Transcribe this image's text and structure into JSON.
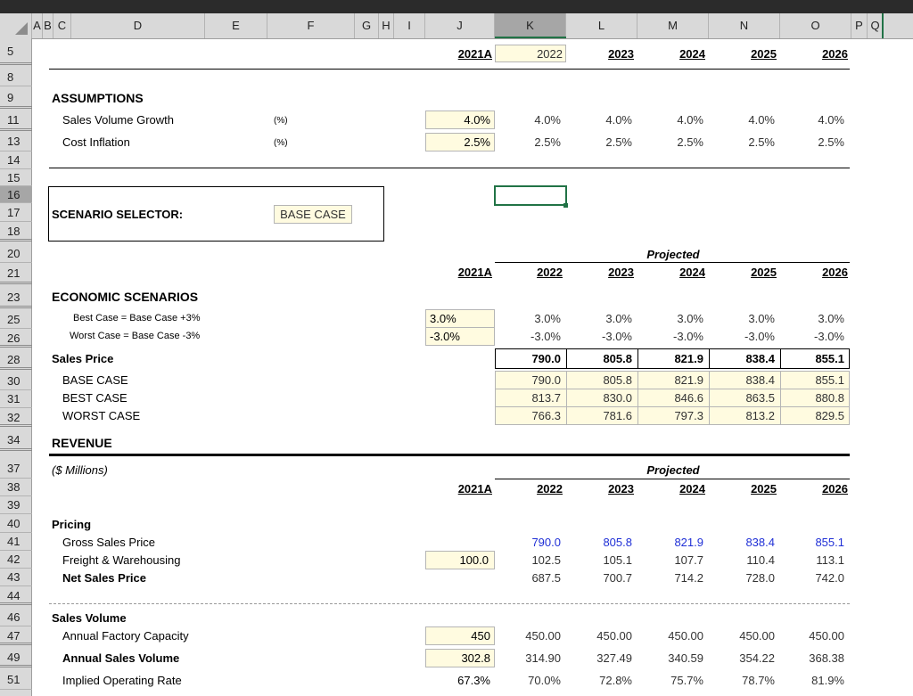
{
  "colors": {
    "selection": "#217346",
    "input_fill": "#fffbe0",
    "blue_text": "#1f2fd6"
  },
  "columns": [
    "A",
    "B",
    "C",
    "D",
    "E",
    "F",
    "G",
    "H",
    "I",
    "J",
    "K",
    "L",
    "M",
    "N",
    "O",
    "P",
    "Q"
  ],
  "rows": [
    "5",
    "8",
    "9",
    "11",
    "13",
    "14",
    "15",
    "16",
    "17",
    "18",
    "20",
    "21",
    "23",
    "25",
    "26",
    "28",
    "30",
    "31",
    "32",
    "34",
    "37",
    "38",
    "39",
    "40",
    "41",
    "42",
    "43",
    "44",
    "46",
    "47",
    "49",
    "51"
  ],
  "years": [
    "2021A",
    "2022",
    "2023",
    "2024",
    "2025",
    "2026"
  ],
  "projected_label": "Projected",
  "assumptions": {
    "title": "ASSUMPTIONS",
    "sales_growth": {
      "label": "Sales Volume Growth",
      "unit": "(%)",
      "values": [
        "4.0%",
        "4.0%",
        "4.0%",
        "4.0%",
        "4.0%",
        "4.0%"
      ]
    },
    "cost_inflation": {
      "label": "Cost Inflation",
      "unit": "(%)",
      "values": [
        "2.5%",
        "2.5%",
        "2.5%",
        "2.5%",
        "2.5%",
        "2.5%"
      ]
    }
  },
  "scenario": {
    "label": "SCENARIO SELECTOR:",
    "value": "BASE CASE"
  },
  "economic": {
    "title": "ECONOMIC SCENARIOS",
    "best": {
      "label": "Best Case = Base Case +3%",
      "values": [
        "3.0%",
        "3.0%",
        "3.0%",
        "3.0%",
        "3.0%",
        "3.0%"
      ]
    },
    "worst": {
      "label": "Worst Case = Base Case -3%",
      "values": [
        "-3.0%",
        "-3.0%",
        "-3.0%",
        "-3.0%",
        "-3.0%",
        "-3.0%"
      ]
    },
    "sales_price": {
      "label": "Sales Price",
      "values": [
        "790.0",
        "805.8",
        "821.9",
        "838.4",
        "855.1"
      ]
    },
    "base_case": {
      "label": "BASE CASE",
      "values": [
        "790.0",
        "805.8",
        "821.9",
        "838.4",
        "855.1"
      ]
    },
    "best_case": {
      "label": "BEST CASE",
      "values": [
        "813.7",
        "830.0",
        "846.6",
        "863.5",
        "880.8"
      ]
    },
    "worst_case": {
      "label": "WORST CASE",
      "values": [
        "766.3",
        "781.6",
        "797.3",
        "813.2",
        "829.5"
      ]
    }
  },
  "revenue": {
    "title": "REVENUE",
    "units": "($ Millions)",
    "pricing_label": "Pricing",
    "gross": {
      "label": "Gross Sales Price",
      "values": [
        "790.0",
        "805.8",
        "821.9",
        "838.4",
        "855.1"
      ]
    },
    "freight": {
      "label": "Freight & Warehousing",
      "values": [
        "100.0",
        "102.5",
        "105.1",
        "107.7",
        "110.4",
        "113.1"
      ]
    },
    "net": {
      "label": "Net Sales Price",
      "values": [
        "687.5",
        "700.7",
        "714.2",
        "728.0",
        "742.0"
      ]
    },
    "volume_label": "Sales Volume",
    "capacity": {
      "label": "Annual Factory Capacity",
      "values": [
        "450",
        "450.00",
        "450.00",
        "450.00",
        "450.00",
        "450.00"
      ]
    },
    "annual_volume": {
      "label": "Annual Sales Volume",
      "values": [
        "302.8",
        "314.90",
        "327.49",
        "340.59",
        "354.22",
        "368.38"
      ]
    },
    "operating_rate": {
      "label": "Implied Operating Rate",
      "values": [
        "67.3%",
        "70.0%",
        "72.8%",
        "75.7%",
        "78.7%",
        "81.9%"
      ]
    }
  }
}
